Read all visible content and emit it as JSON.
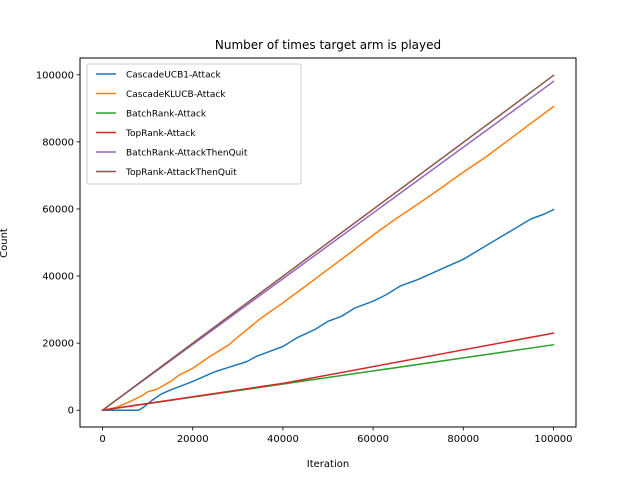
{
  "chart_data": {
    "type": "line",
    "title": "Number of times target arm is played",
    "xlabel": "Iteration",
    "ylabel": "Count",
    "xlim": [
      -5000,
      105000
    ],
    "ylim": [
      -5000,
      105000
    ],
    "xticks": [
      0,
      20000,
      40000,
      60000,
      80000,
      100000
    ],
    "yticks": [
      0,
      20000,
      40000,
      60000,
      80000,
      100000
    ],
    "xtick_labels": [
      "0",
      "20000",
      "40000",
      "60000",
      "80000",
      "100000"
    ],
    "ytick_labels": [
      "0",
      "20000",
      "40000",
      "60000",
      "80000",
      "100000"
    ],
    "grid": false,
    "legend_position": "upper-left",
    "series": [
      {
        "name": "CascadeUCB1-Attack",
        "color": "#1f77b4",
        "points": [
          [
            0,
            0
          ],
          [
            8000,
            0
          ],
          [
            9000,
            800
          ],
          [
            11000,
            3000
          ],
          [
            13000,
            4800
          ],
          [
            15000,
            6000
          ],
          [
            17000,
            7000
          ],
          [
            20000,
            8600
          ],
          [
            25000,
            11500
          ],
          [
            28000,
            12800
          ],
          [
            32000,
            14500
          ],
          [
            34000,
            16000
          ],
          [
            38000,
            18000
          ],
          [
            40000,
            19000
          ],
          [
            43000,
            21500
          ],
          [
            47000,
            24000
          ],
          [
            50000,
            26500
          ],
          [
            53000,
            28000
          ],
          [
            56000,
            30500
          ],
          [
            60000,
            32500
          ],
          [
            63000,
            34500
          ],
          [
            66000,
            37000
          ],
          [
            70000,
            39000
          ],
          [
            75000,
            42000
          ],
          [
            80000,
            45000
          ],
          [
            85000,
            49000
          ],
          [
            90000,
            53000
          ],
          [
            95000,
            57000
          ],
          [
            98000,
            58500
          ],
          [
            100000,
            59800
          ]
        ]
      },
      {
        "name": "CascadeKLUCB-Attack",
        "color": "#ff7f0e",
        "points": [
          [
            0,
            0
          ],
          [
            3000,
            800
          ],
          [
            6000,
            2500
          ],
          [
            9000,
            4500
          ],
          [
            10000,
            5500
          ],
          [
            12000,
            6200
          ],
          [
            15000,
            8500
          ],
          [
            17000,
            10500
          ],
          [
            20000,
            12500
          ],
          [
            24000,
            16200
          ],
          [
            28000,
            19500
          ],
          [
            30000,
            21800
          ],
          [
            35000,
            27300
          ],
          [
            40000,
            32000
          ],
          [
            45000,
            37000
          ],
          [
            50000,
            42000
          ],
          [
            55000,
            47000
          ],
          [
            60000,
            52200
          ],
          [
            65000,
            57000
          ],
          [
            70000,
            61500
          ],
          [
            75000,
            66200
          ],
          [
            80000,
            71000
          ],
          [
            85000,
            75500
          ],
          [
            90000,
            80500
          ],
          [
            95000,
            85500
          ],
          [
            100000,
            90500
          ]
        ]
      },
      {
        "name": "BatchRank-Attack",
        "color": "#2ca02c",
        "points": [
          [
            0,
            0
          ],
          [
            100000,
            19500
          ]
        ]
      },
      {
        "name": "TopRank-Attack",
        "color": "#d62728",
        "points": [
          [
            0,
            0
          ],
          [
            40000,
            8000
          ],
          [
            100000,
            23000
          ]
        ]
      },
      {
        "name": "BatchRank-AttackThenQuit",
        "color": "#9467bd",
        "points": [
          [
            0,
            0
          ],
          [
            100000,
            98000
          ]
        ]
      },
      {
        "name": "TopRank-AttackThenQuit",
        "color": "#8c564b",
        "points": [
          [
            0,
            0
          ],
          [
            100000,
            99800
          ]
        ]
      }
    ]
  }
}
